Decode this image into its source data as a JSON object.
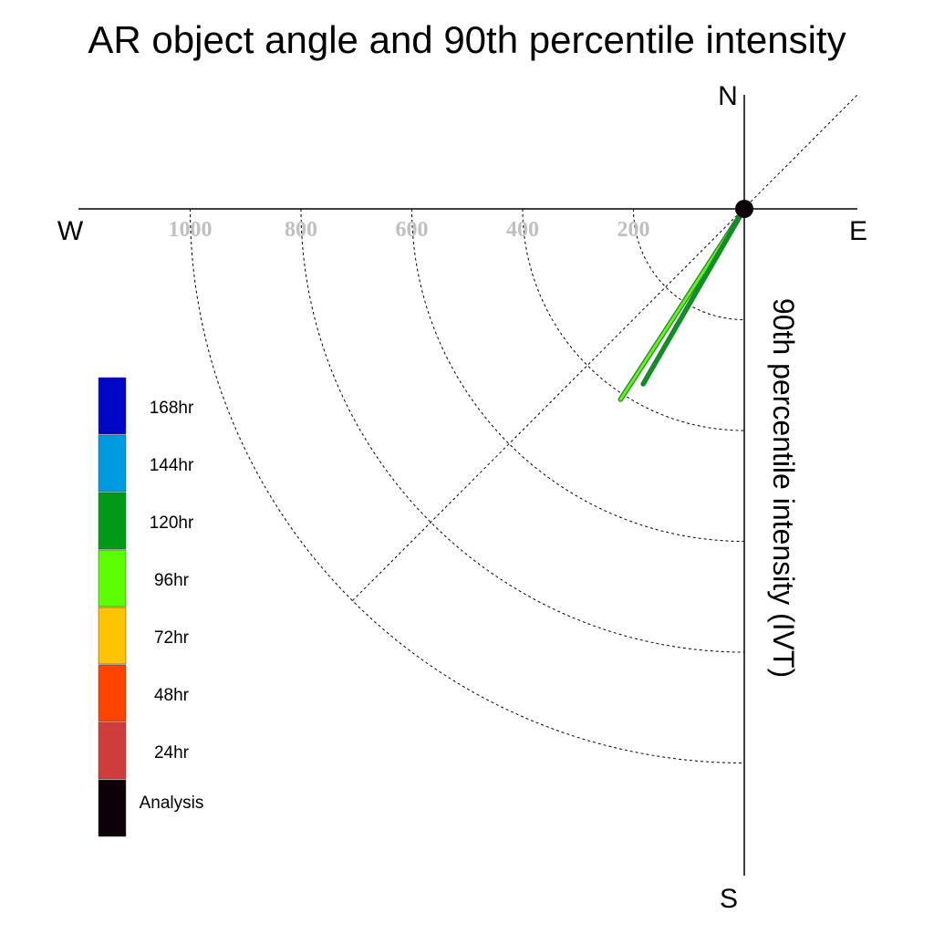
{
  "chart_data": {
    "type": "polar",
    "title": "AR object angle and 90th percentile intensity",
    "radial_label": "90th percentile intensity (IVT)",
    "compass": {
      "north": "N",
      "south": "S",
      "east": "E",
      "west": "W"
    },
    "r_ticks": [
      200,
      400,
      600,
      800,
      1000
    ],
    "r_tick_labels": [
      "200",
      "400",
      "600",
      "800",
      "1000"
    ],
    "r_max": 1200,
    "grid": true,
    "diagonal_reference_angle_deg": 225,
    "series": [
      {
        "name": "96hr",
        "color": "#5aff00",
        "angle_deg": 213,
        "intensity": 410
      },
      {
        "name": "120hr",
        "color": "#009a18",
        "angle_deg": 210,
        "intensity": 365
      }
    ],
    "legend": {
      "position": "left",
      "items": [
        {
          "label": "168hr",
          "color": "#0006c6"
        },
        {
          "label": "144hr",
          "color": "#009ae0"
        },
        {
          "label": "120hr",
          "color": "#009a18"
        },
        {
          "label": "96hr",
          "color": "#5aff00"
        },
        {
          "label": "72hr",
          "color": "#ffc400"
        },
        {
          "label": "48hr",
          "color": "#ff4300"
        },
        {
          "label": "24hr",
          "color": "#cf3c3c"
        },
        {
          "label": "Analysis",
          "color": "#0c0009"
        }
      ]
    }
  }
}
